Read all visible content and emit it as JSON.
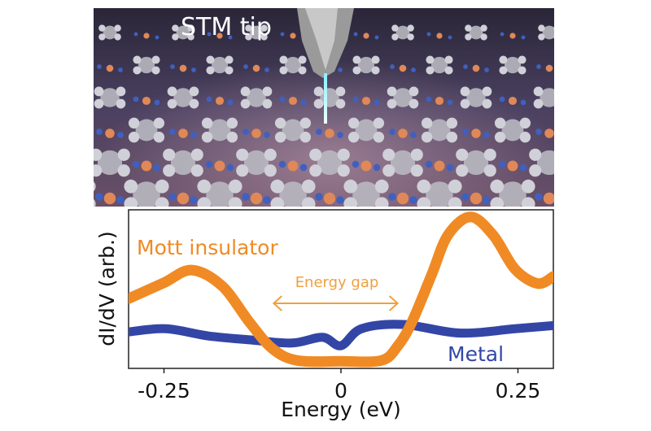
{
  "image": {
    "label": "STM tip",
    "description_icon": "stm-tip-molecular-lattice-render"
  },
  "chart_data": {
    "type": "line",
    "xlabel": "Energy (eV)",
    "ylabel": "dI/dV (arb.)",
    "xlim": [
      -0.3,
      0.3
    ],
    "ylim": [
      0,
      1
    ],
    "xticks": [
      -0.25,
      0,
      0.25
    ],
    "xtick_labels": [
      "-0.25",
      "0",
      "0.25"
    ],
    "yticks": [],
    "grid": false,
    "series": [
      {
        "name": "Mott insulator",
        "color": "#f08a24",
        "x": [
          -0.3,
          -0.25,
          -0.211,
          -0.168,
          -0.129,
          -0.097,
          -0.062,
          0,
          0.057,
          0.08,
          0.1,
          0.128,
          0.151,
          0.183,
          0.215,
          0.246,
          0.278,
          0.3
        ],
        "y": [
          0.44,
          0.54,
          0.62,
          0.52,
          0.29,
          0.125,
          0.05,
          0.045,
          0.05,
          0.14,
          0.29,
          0.59,
          0.84,
          0.955,
          0.84,
          0.625,
          0.535,
          0.58
        ]
      },
      {
        "name": "Metal",
        "color": "#3346a6",
        "x": [
          -0.3,
          -0.247,
          -0.188,
          -0.129,
          -0.069,
          -0.026,
          0,
          0.029,
          0.088,
          0.167,
          0.246,
          0.3
        ],
        "y": [
          0.23,
          0.25,
          0.205,
          0.18,
          0.16,
          0.196,
          0.143,
          0.25,
          0.277,
          0.223,
          0.25,
          0.27
        ]
      }
    ],
    "annotations": [
      {
        "text": "Energy gap",
        "arrow_from": -0.095,
        "arrow_to": 0.08,
        "color": "#f0a040"
      }
    ]
  }
}
